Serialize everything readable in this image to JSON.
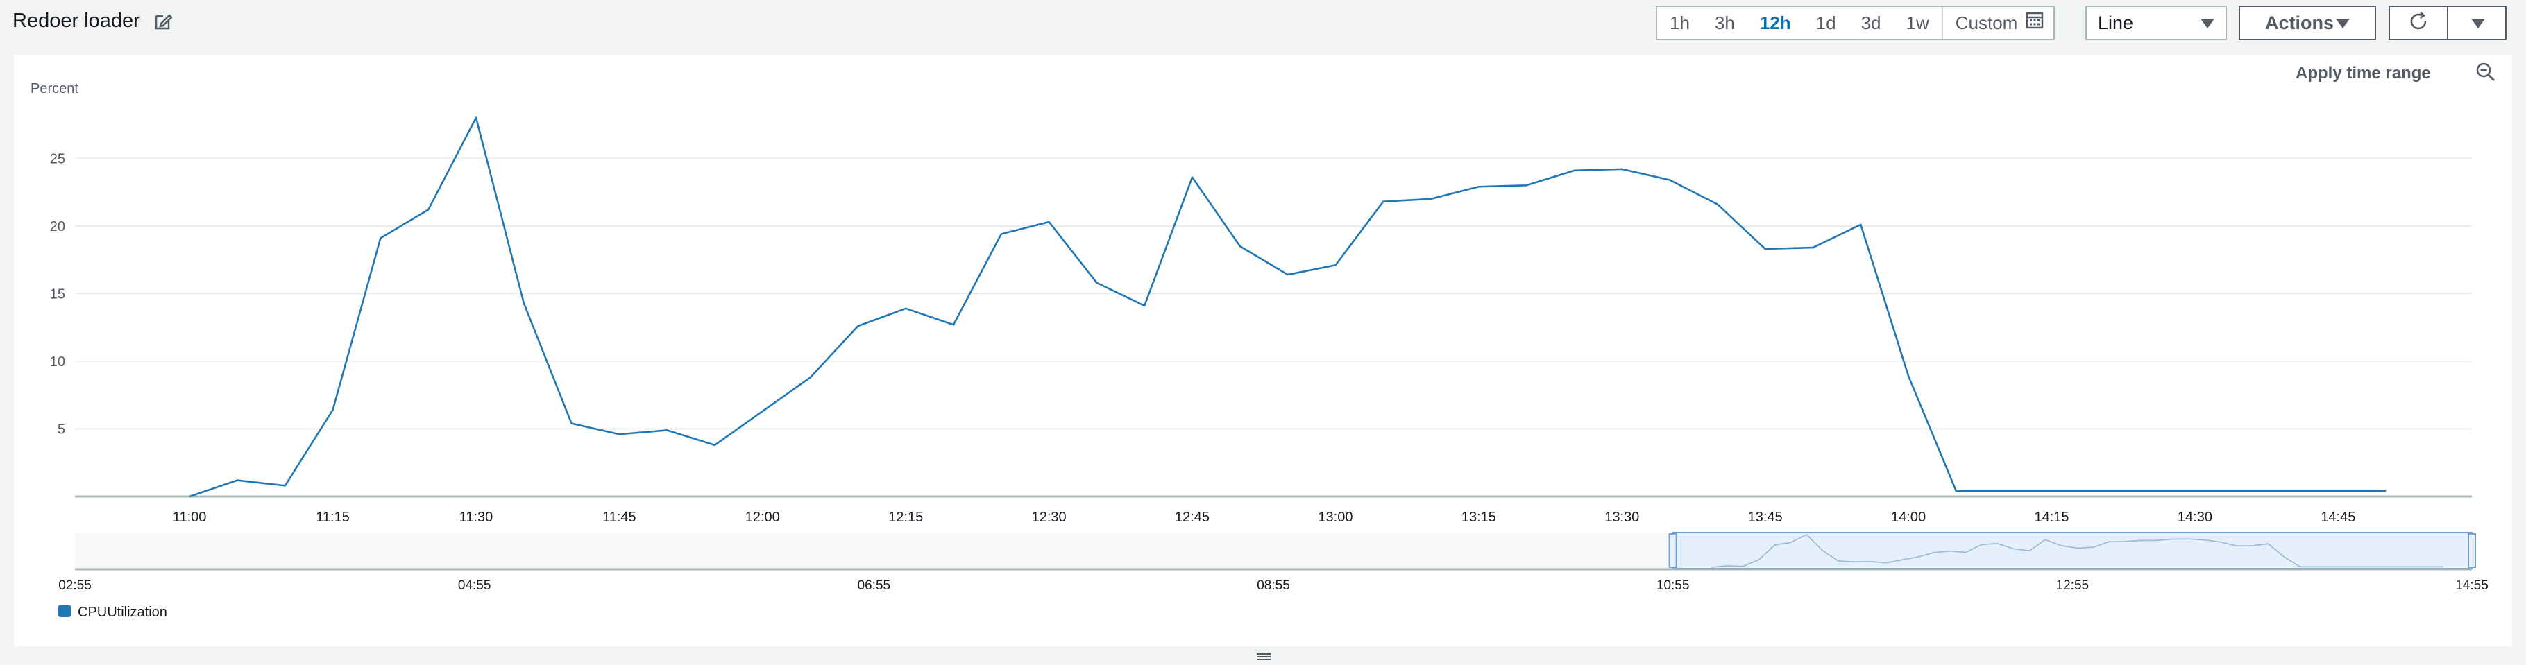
{
  "header": {
    "title": "Redoer loader",
    "edit_icon": "edit-icon",
    "ranges": [
      "1h",
      "3h",
      "12h",
      "1d",
      "3d",
      "1w"
    ],
    "active_range": "12h",
    "custom_label": "Custom",
    "calendar_icon": "calendar-icon",
    "chart_type_select": "Line",
    "actions_label": "Actions",
    "refresh_icon": "refresh-icon"
  },
  "panel": {
    "apply_time_range": "Apply time range",
    "zoom_icon": "zoom-out-icon"
  },
  "chart_data": {
    "type": "line",
    "ylabel": "Percent",
    "ylim": [
      0,
      28.5
    ],
    "yticks": [
      5,
      10,
      15,
      20,
      25
    ],
    "xlim": [
      "10:48",
      "14:59"
    ],
    "xticks": [
      "11:00",
      "11:15",
      "11:30",
      "11:45",
      "12:00",
      "12:15",
      "12:30",
      "12:45",
      "13:00",
      "13:15",
      "13:30",
      "13:45",
      "14:00",
      "14:15",
      "14:30",
      "14:45"
    ],
    "grid": true,
    "color": "#1f77b4",
    "series": [
      {
        "name": "CPUUtilization",
        "x": [
          "11:00",
          "11:05",
          "11:10",
          "11:15",
          "11:20",
          "11:25",
          "11:30",
          "11:35",
          "11:40",
          "11:45",
          "11:50",
          "11:55",
          "12:00",
          "12:05",
          "12:10",
          "12:15",
          "12:20",
          "12:25",
          "12:30",
          "12:35",
          "12:40",
          "12:45",
          "12:50",
          "12:55",
          "13:00",
          "13:05",
          "13:10",
          "13:15",
          "13:20",
          "13:25",
          "13:30",
          "13:35",
          "13:40",
          "13:45",
          "13:50",
          "13:55",
          "14:00",
          "14:05",
          "14:10",
          "14:15",
          "14:20",
          "14:25",
          "14:30",
          "14:35",
          "14:40",
          "14:45",
          "14:50"
        ],
        "values": [
          0.0,
          1.2,
          0.8,
          6.4,
          19.1,
          21.2,
          28.0,
          14.3,
          5.4,
          4.6,
          4.9,
          3.8,
          6.3,
          8.8,
          12.6,
          13.9,
          12.7,
          19.4,
          20.3,
          15.8,
          14.1,
          23.6,
          18.5,
          16.4,
          17.1,
          21.8,
          22.0,
          22.9,
          23.0,
          24.1,
          24.2,
          23.4,
          21.6,
          18.3,
          18.4,
          20.1,
          8.9,
          0.4,
          0.4,
          0.4,
          0.4,
          0.4,
          0.4,
          0.4,
          0.4,
          0.4,
          0.4
        ]
      }
    ],
    "overview": {
      "tick_labels": [
        "02:55",
        "04:55",
        "06:55",
        "08:55",
        "10:55",
        "12:55",
        "14:55"
      ],
      "selection_start": "10:55",
      "selection_end": "14:55"
    },
    "legend": "bottom-left"
  }
}
